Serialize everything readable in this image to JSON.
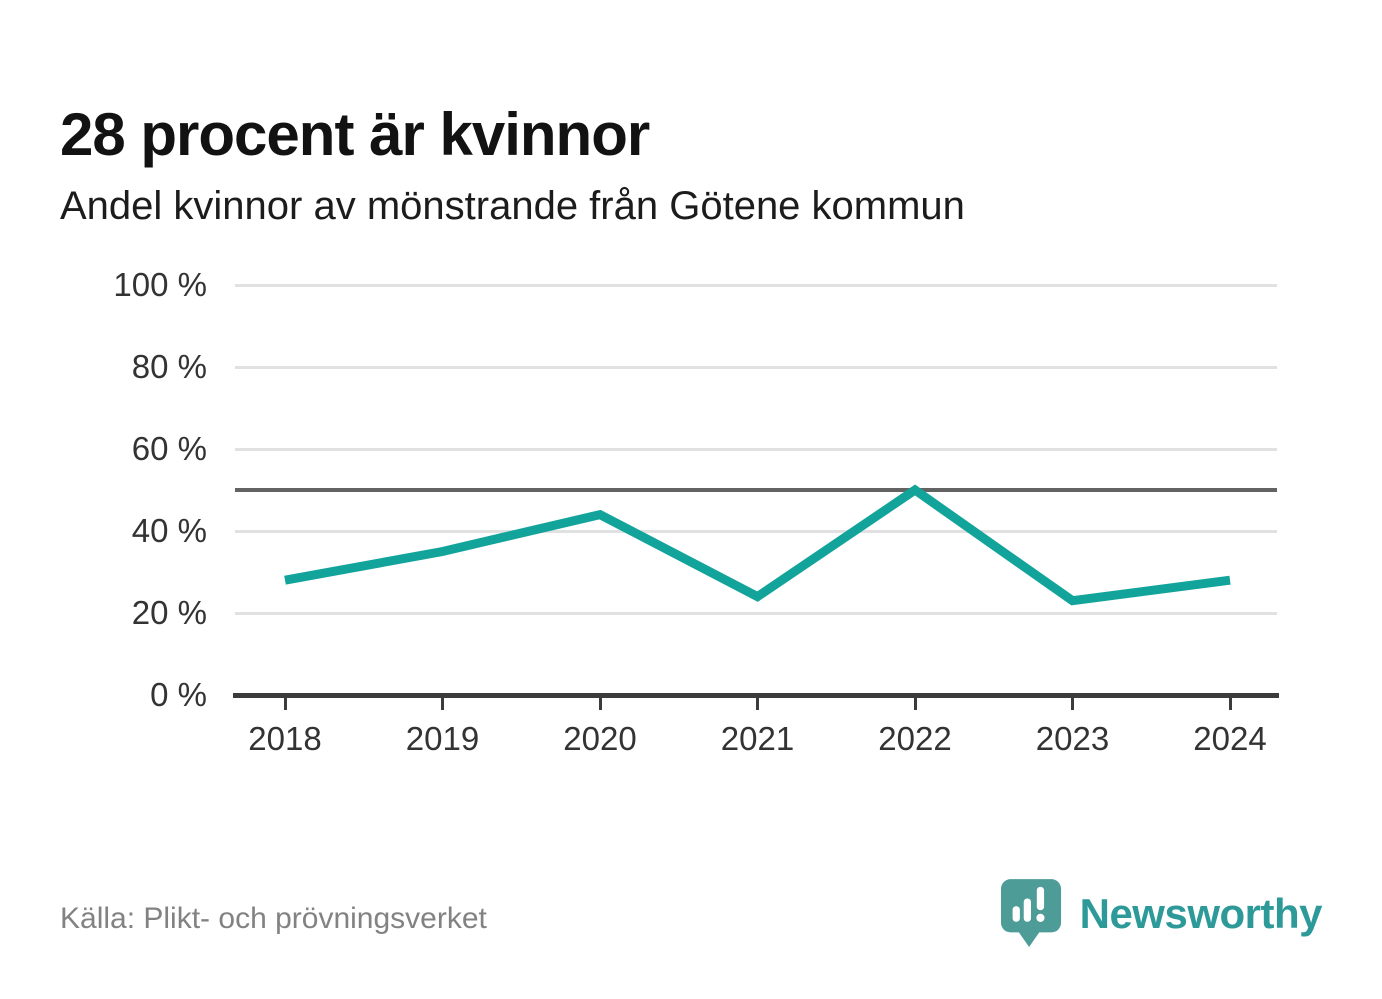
{
  "header": {
    "title": "28 procent är kvinnor",
    "subtitle": "Andel kvinnor av mönstrande från Götene kommun"
  },
  "footer": {
    "source": "Källa: Plikt- och prövningsverket",
    "brand": "Newsworthy"
  },
  "colors": {
    "background": "#ffffff",
    "line": "#12a49b",
    "grid": "#e1e1e1",
    "reference_line": "#636363",
    "axis": "#3b3b3b",
    "tick_label": "#333333",
    "source_text": "#828282",
    "brand_text": "#2d9a99",
    "brand_icon": "#4d9c98"
  },
  "chart_data": {
    "type": "line",
    "title": "28 procent är kvinnor",
    "subtitle": "Andel kvinnor av mönstrande från Götene kommun",
    "x": [
      "2018",
      "2019",
      "2020",
      "2021",
      "2022",
      "2023",
      "2024"
    ],
    "series": [
      {
        "name": "Andel kvinnor av mönstrande",
        "values": [
          28,
          35,
          44,
          24,
          50,
          23,
          28
        ],
        "color": "#12a49b"
      }
    ],
    "unit": "%",
    "ylim": [
      0,
      100
    ],
    "y_ticks": [
      0,
      20,
      40,
      60,
      80,
      100
    ],
    "y_tick_labels": [
      "0 %",
      "20 %",
      "40 %",
      "60 %",
      "80 %",
      "100 %"
    ],
    "reference_line": 50,
    "grid": "horizontal",
    "legend": "none",
    "markers": "none"
  }
}
